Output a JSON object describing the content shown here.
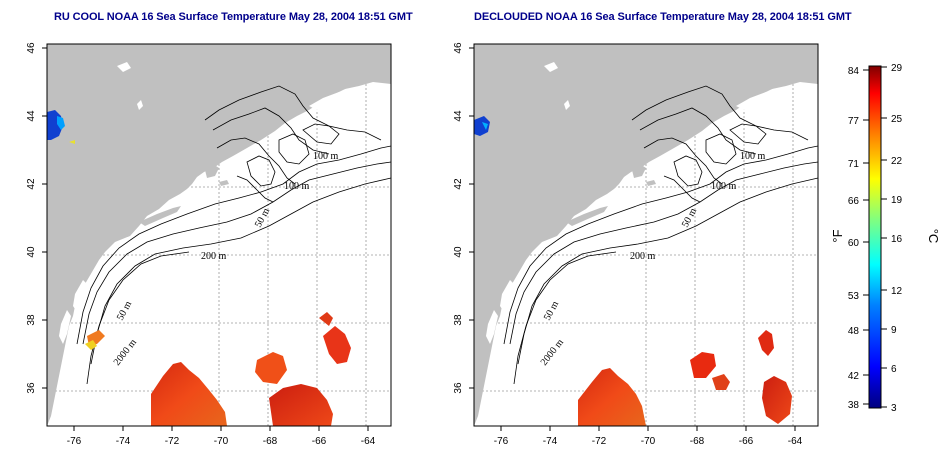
{
  "titles": {
    "left": "RU COOL NOAA 16 Sea Surface Temperature May 28, 2004 18:51 GMT",
    "right": "DECLOUDED NOAA 16 Sea Surface Temperature May 28, 2004 18:51 GMT"
  },
  "map": {
    "lon_range": [
      -77,
      -63
    ],
    "lat_range": [
      35,
      46
    ],
    "lon_ticks": [
      "-76",
      "-74",
      "-72",
      "-70",
      "-68",
      "-66",
      "-64"
    ],
    "lat_ticks": [
      "46",
      "44",
      "42",
      "40",
      "38",
      "36"
    ],
    "contour_labels": [
      "100 m",
      "100 m",
      "50 m",
      "200 m",
      "50 m",
      "2000 m"
    ],
    "colors": {
      "land": "#c0c0c0",
      "ocean": "#ffffff",
      "grid": "#9a9a9a"
    }
  },
  "colorbar": {
    "fahrenheit_ticks": [
      "84",
      "77",
      "71",
      "66",
      "60",
      "53",
      "48",
      "42",
      "38"
    ],
    "celsius_ticks": [
      "29",
      "25",
      "22",
      "19",
      "16",
      "12",
      "9",
      "6",
      "3"
    ],
    "celsius_range": [
      3,
      29
    ],
    "fahrenheit_unit": "°F",
    "celsius_unit": "°C"
  }
}
